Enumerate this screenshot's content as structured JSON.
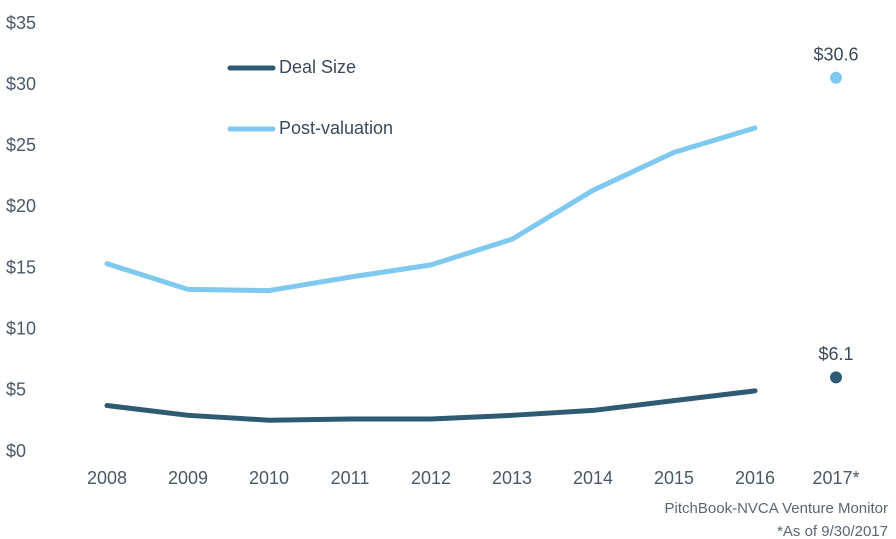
{
  "chart_data": {
    "type": "line",
    "categories": [
      "2008",
      "2009",
      "2010",
      "2011",
      "2012",
      "2013",
      "2014",
      "2015",
      "2016",
      "2017*"
    ],
    "series": [
      {
        "name": "Deal Size",
        "color": "#2e5a73",
        "values": [
          3.8,
          3.0,
          2.6,
          2.7,
          2.7,
          3.0,
          3.4,
          4.2,
          5.0,
          6.1
        ],
        "value_labels": [
          null,
          null,
          null,
          null,
          null,
          null,
          null,
          null,
          null,
          "$6.1"
        ]
      },
      {
        "name": "Post-valuation",
        "color": "#7fc8f0",
        "values": [
          15.4,
          13.3,
          13.2,
          14.3,
          15.3,
          17.4,
          21.4,
          24.5,
          26.5,
          30.6
        ],
        "value_labels": [
          null,
          null,
          null,
          null,
          null,
          null,
          null,
          null,
          null,
          "$30.6"
        ]
      }
    ],
    "ylim": [
      0,
      35
    ],
    "yticks": [
      {
        "value": 0,
        "label": "$0"
      },
      {
        "value": 5,
        "label": "$5"
      },
      {
        "value": 10,
        "label": "$10"
      },
      {
        "value": 15,
        "label": "$15"
      },
      {
        "value": 20,
        "label": "$20"
      },
      {
        "value": 25,
        "label": "$25"
      },
      {
        "value": 30,
        "label": "$30"
      },
      {
        "value": 35,
        "label": "$35"
      }
    ],
    "grid": false,
    "legend": "top-left",
    "source": "PitchBook-NVCA Venture Monitor",
    "footnote": "*As of 9/30/2017"
  }
}
